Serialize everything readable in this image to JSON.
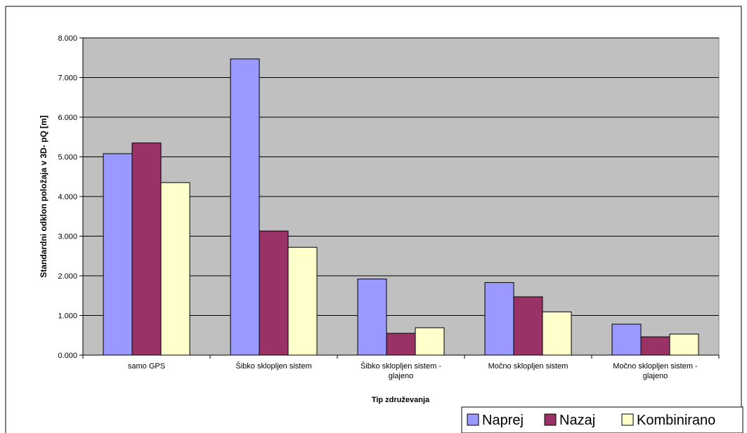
{
  "chart_data": {
    "type": "bar",
    "categories": [
      [
        "samo GPS"
      ],
      [
        "Šibko sklopljen sistem"
      ],
      [
        "Šibko sklopljen sistem -",
        "glajeno"
      ],
      [
        "Močno sklopljen sistem"
      ],
      [
        "Močno sklopljen sistem -",
        "glajeno"
      ]
    ],
    "series": [
      {
        "name": "Naprej",
        "color": "#9999ff",
        "values": [
          5.08,
          7.47,
          1.92,
          1.83,
          0.78
        ]
      },
      {
        "name": "Nazaj",
        "color": "#993366",
        "values": [
          5.35,
          3.13,
          0.55,
          1.47,
          0.46
        ]
      },
      {
        "name": "Kombinirano",
        "color": "#ffffcc",
        "values": [
          4.35,
          2.72,
          0.69,
          1.09,
          0.53
        ]
      }
    ],
    "xlabel": "Tip združevanja",
    "ylabel": "Standardni odklon položaja v 3D- pQ [m]",
    "ylim": [
      0,
      8
    ],
    "yticks": [
      "0.000",
      "1.000",
      "2.000",
      "3.000",
      "4.000",
      "5.000",
      "6.000",
      "7.000",
      "8.000"
    ],
    "plot_background": "#c0c0c0",
    "grid": true,
    "legend_position": "bottom-right"
  }
}
